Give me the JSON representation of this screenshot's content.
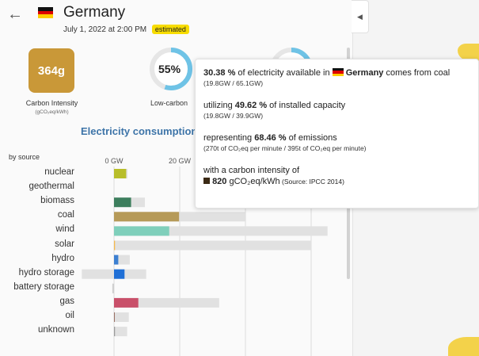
{
  "header": {
    "country": "Germany",
    "datetime": "July 1, 2022 at 2:00 PM",
    "badge": "estimated"
  },
  "carbon_intensity": {
    "value": "364g",
    "label": "Carbon Intensity",
    "unit": "(gCO₂eq/kWh)",
    "color": "#c99838"
  },
  "low_carbon": {
    "value_text": "55%",
    "fraction": 0.55,
    "label": "Low-carbon"
  },
  "renewable": {
    "fraction": 0.52
  },
  "section_title": "Electricity consumption",
  "by_source_label": "by source",
  "chart_data": {
    "type": "bar",
    "x_ticks": [
      "0 GW",
      "20 GW"
    ],
    "xlim": [
      -10,
      70
    ],
    "categories": [
      "nuclear",
      "geothermal",
      "biomass",
      "coal",
      "wind",
      "solar",
      "hydro",
      "hydro storage",
      "battery storage",
      "gas",
      "oil",
      "unknown"
    ],
    "series": [
      {
        "production_gw": [
          3.7,
          0,
          5.2,
          19.8,
          16.8,
          0.3,
          1.3,
          3.2,
          0,
          7.4,
          0.2,
          0.3
        ],
        "capacity_gw": [
          4.1,
          0,
          9.4,
          39.9,
          65.0,
          60.0,
          4.8,
          9.8,
          0,
          32.0,
          4.5,
          4.0
        ],
        "storage_charge_gw": [
          0,
          0,
          0,
          0,
          0,
          0,
          0,
          -9.8,
          -0.5,
          0,
          0,
          0
        ]
      }
    ],
    "colors": {
      "nuclear": "#b8be2a",
      "biomass": "#3d7f5e",
      "coal": "#b69a59",
      "wind": "#7fcfbb",
      "solar": "#f7b84b",
      "hydro": "#3c7fd1",
      "hydro storage": "#1f6fd6",
      "gas": "#c9506a",
      "oil": "#8b5a4a",
      "unknown": "#9a9a9a",
      "capacity": "#e1e1e1"
    }
  },
  "tooltip": {
    "line1_pct": "30.38 %",
    "line1_pre": " of electricity available in ",
    "line1_country": "Germany",
    "line1_post": " comes from coal",
    "line1_sub": "(19.8GW / 65.1GW)",
    "line2_pre": "utilizing ",
    "line2_pct": "49.62 %",
    "line2_post": " of installed capacity",
    "line2_sub": "(19.8GW / 39.9GW)",
    "line3_pre": "representing ",
    "line3_pct": "68.46 %",
    "line3_post": " of emissions",
    "line3_sub": "(270t of CO₂eq per minute / 395t of CO₂eq per minute)",
    "line4": "with a carbon intensity of",
    "line4_value": "820",
    "line4_unit": " gCO₂eq/kWh",
    "line4_source": " (Source: IPCC 2014)"
  }
}
